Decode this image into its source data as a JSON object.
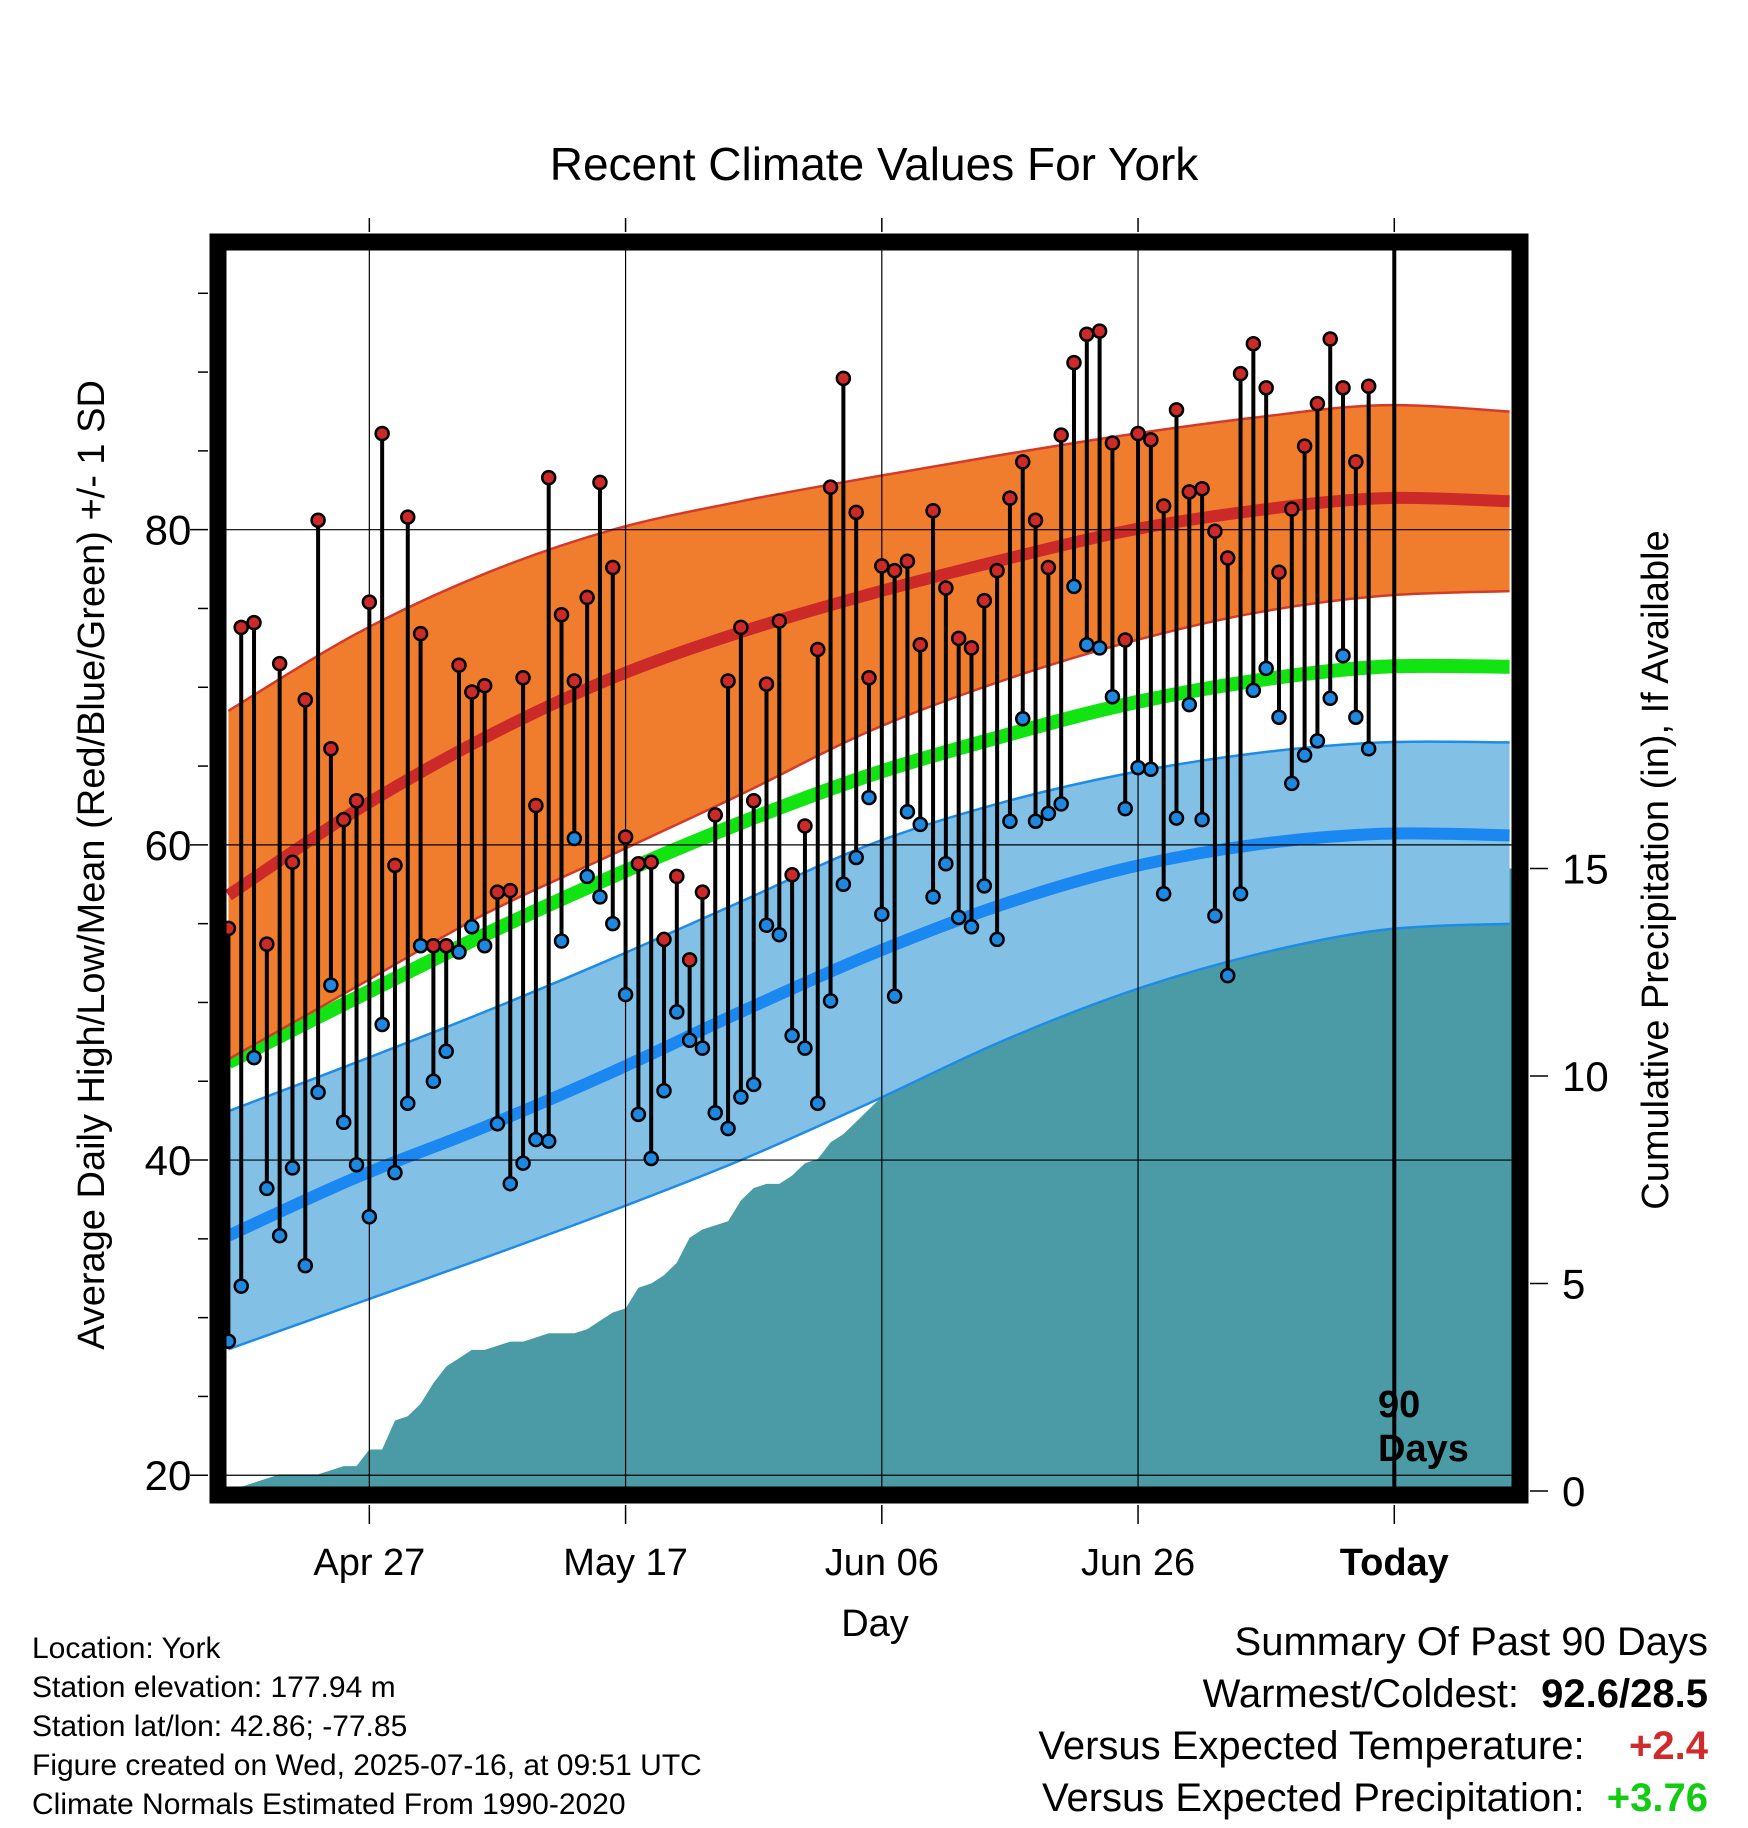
{
  "chart_data": {
    "type": "line",
    "title": "Recent Climate Values For York",
    "xlabel": "Day",
    "ylabel": "Average Daily High/Low/Mean (Red/Blue/Green) +/- 1 SD",
    "y2label": "Cumulative Precipitation (in), If Available",
    "ylim": [
      19,
      98
    ],
    "y2lim": [
      0,
      30
    ],
    "yticks": [
      20,
      40,
      60,
      80
    ],
    "y2ticks": [
      0,
      5,
      10,
      15
    ],
    "xticks": [
      {
        "day": 19,
        "label": "Apr 27"
      },
      {
        "day": 39,
        "label": "May 17"
      },
      {
        "day": 59,
        "label": "Jun 06"
      },
      {
        "day": 79,
        "label": "Jun 26"
      },
      {
        "day": 99,
        "label": "Today"
      }
    ],
    "xlim": [
      7.5,
      108.5
    ],
    "today_day": 99,
    "today_label": [
      "90",
      "Days"
    ],
    "grid": true,
    "normals": {
      "x": [
        8,
        18,
        28,
        38,
        48,
        58,
        68,
        78,
        88,
        98,
        108
      ],
      "high_mean": [
        56.8,
        62.2,
        66.8,
        70.6,
        73.5,
        75.9,
        78.0,
        79.9,
        81.2,
        82.0,
        81.8
      ],
      "high_upper": [
        68.5,
        73.4,
        77.2,
        80.0,
        81.8,
        83.3,
        84.7,
        86.0,
        87.1,
        87.9,
        87.5
      ],
      "high_lower": [
        46.4,
        51.0,
        55.6,
        59.4,
        63.2,
        67.2,
        70.3,
        72.8,
        74.7,
        75.8,
        76.1
      ],
      "mid_mean": [
        46.2,
        50.3,
        54.3,
        58.0,
        61.4,
        64.4,
        66.8,
        68.9,
        70.4,
        71.3,
        71.3
      ],
      "low_mean": [
        35.2,
        38.9,
        42.1,
        45.6,
        49.4,
        53.0,
        56.1,
        58.5,
        60.0,
        60.7,
        60.6
      ],
      "low_upper": [
        43.1,
        46.2,
        49.4,
        52.8,
        56.4,
        60.0,
        62.6,
        64.5,
        65.8,
        66.5,
        66.5
      ],
      "low_lower": [
        28.0,
        30.9,
        33.8,
        36.8,
        40.0,
        43.6,
        47.4,
        50.6,
        53.0,
        54.6,
        55.0
      ]
    },
    "daily_start_day": 8,
    "daily_high": [
      54.7,
      73.8,
      74.1,
      53.7,
      71.5,
      58.9,
      69.2,
      80.6,
      66.1,
      61.6,
      62.8,
      75.4,
      86.1,
      58.7,
      80.8,
      73.4,
      53.6,
      53.6,
      71.4,
      69.7,
      70.1,
      57.0,
      57.1,
      70.6,
      62.5,
      83.3,
      74.6,
      70.4,
      75.7,
      83.0,
      77.6,
      60.5,
      58.8,
      58.9,
      54.0,
      58.0,
      52.7,
      57.0,
      61.9,
      70.4,
      73.8,
      62.8,
      70.2,
      74.2,
      58.1,
      61.2,
      72.4,
      82.7,
      89.6,
      81.1,
      70.6,
      77.7,
      77.4,
      78.0,
      72.7,
      81.2,
      76.3,
      73.1,
      72.5,
      75.5,
      77.4,
      82.0,
      84.3,
      80.6,
      77.6,
      86.0,
      90.6,
      92.4,
      92.6,
      85.5,
      73.0,
      86.1,
      85.7,
      81.5,
      87.6,
      82.4,
      82.6,
      79.9,
      78.2,
      89.9,
      91.8,
      89.0,
      77.3,
      81.3,
      85.3,
      88.0,
      92.1,
      89.0,
      84.3,
      89.1
    ],
    "daily_low": [
      28.5,
      32.0,
      46.5,
      38.2,
      35.2,
      39.5,
      33.3,
      44.3,
      51.1,
      42.4,
      39.7,
      36.4,
      48.6,
      39.2,
      43.6,
      53.6,
      45.0,
      46.9,
      53.2,
      54.8,
      53.6,
      42.3,
      38.5,
      39.8,
      41.3,
      41.2,
      53.9,
      60.4,
      58.0,
      56.7,
      55.0,
      50.5,
      42.9,
      40.1,
      44.4,
      49.4,
      47.6,
      47.1,
      43.0,
      42.0,
      44.0,
      44.8,
      54.9,
      54.3,
      47.9,
      47.1,
      43.6,
      50.1,
      57.5,
      59.2,
      63.0,
      55.6,
      50.4,
      62.1,
      61.3,
      56.7,
      58.8,
      55.4,
      54.8,
      57.4,
      54.0,
      61.5,
      68.0,
      61.5,
      62.0,
      62.6,
      76.4,
      72.7,
      72.5,
      69.4,
      62.3,
      64.9,
      64.8,
      56.9,
      61.7,
      68.9,
      61.6,
      55.5,
      51.7,
      56.9,
      69.8,
      71.2,
      68.1,
      63.9,
      65.7,
      66.6,
      69.3,
      72.0,
      68.1,
      66.1
    ],
    "precip_days": [
      8,
      11,
      12,
      14,
      15,
      16,
      17,
      18,
      19,
      20,
      21,
      22,
      23,
      24,
      25,
      26,
      27,
      28,
      29,
      30,
      31,
      32,
      33,
      34,
      35,
      36,
      37,
      38,
      39,
      40,
      41,
      42,
      43,
      44,
      45,
      46,
      47,
      48,
      49,
      50,
      51,
      52,
      53,
      54,
      55,
      56,
      57,
      58,
      59,
      60,
      61,
      62,
      63,
      64,
      65,
      66,
      67,
      68,
      69,
      70,
      71,
      72,
      73,
      74,
      75,
      76,
      77,
      78,
      79,
      80,
      81,
      82,
      83,
      84,
      85,
      86,
      87,
      88,
      89,
      90,
      91,
      92,
      93,
      94,
      95,
      96,
      97,
      98,
      99,
      108.5
    ],
    "precip_cum": [
      0,
      0.3,
      0.4,
      0.4,
      0.4,
      0.5,
      0.6,
      0.6,
      1.0,
      1.0,
      1.7,
      1.8,
      2.1,
      2.6,
      3.0,
      3.2,
      3.4,
      3.4,
      3.5,
      3.6,
      3.6,
      3.7,
      3.8,
      3.8,
      3.8,
      3.9,
      4.1,
      4.3,
      4.4,
      4.9,
      5.0,
      5.2,
      5.5,
      6.1,
      6.3,
      6.4,
      6.5,
      7.0,
      7.3,
      7.4,
      7.4,
      7.6,
      7.9,
      8.0,
      8.4,
      8.6,
      8.9,
      9.2,
      9.5,
      9.6,
      9.9,
      10.0,
      10.2,
      10.4,
      10.6,
      10.9,
      11.1,
      11.4,
      11.6,
      11.8,
      12.0,
      12.4,
      12.6,
      12.9,
      13.1,
      13.3,
      13.5,
      13.6,
      13.9,
      14.0,
      14.2,
      14.4,
      14.6,
      14.7,
      14.8,
      14.9,
      15.0,
      15.0,
      15.0,
      15.0,
      15.0,
      15.0,
      15.0,
      15.0,
      15.0,
      15.0,
      15.0,
      15.0,
      15.0,
      15.0
    ],
    "colors": {
      "high_band": "#f07d2d",
      "high_edge": "#d33a2a",
      "high_mean": "#cc2a29",
      "mid_mean": "#11e411",
      "low_band": "#82c0e6",
      "low_edge": "#1e8ce6",
      "low_mean": "#1a88f0",
      "precip": "#4a9ba6",
      "high_dot": "#cc2a29",
      "low_dot": "#1e88e0",
      "positive_temp": "#d12a2a",
      "positive_precip": "#11cc11"
    }
  },
  "info": {
    "location": "Location: York",
    "elevation": "Station elevation: 177.94 m",
    "latlon": "Station lat/lon: 42.86; -77.85",
    "created": "Figure created on Wed, 2025-07-16, at 09:51 UTC",
    "normals": "Climate Normals Estimated From 1990-2020"
  },
  "summary": {
    "title": "Summary Of Past 90 Days",
    "warm_label": "Warmest/Coldest:",
    "warm_value": "92.6/28.5",
    "temp_label": "Versus Expected Temperature:",
    "temp_value": "+2.4",
    "precip_label": "Versus Expected Precipitation:",
    "precip_value": "+3.76"
  }
}
